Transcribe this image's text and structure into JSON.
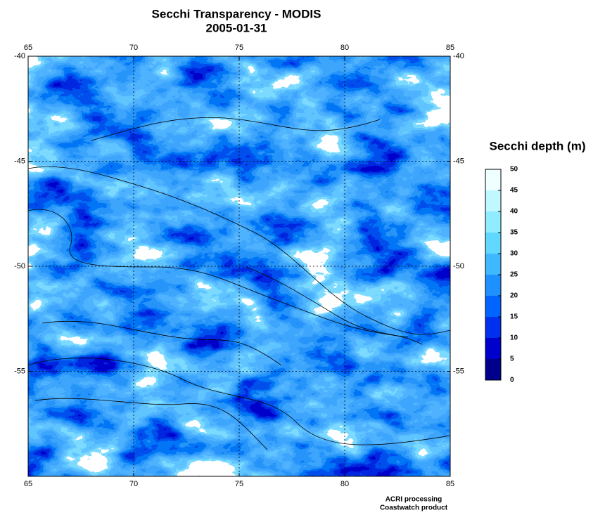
{
  "map": {
    "title": "Secchi Transparency - MODIS",
    "subtitle": "2005-01-31",
    "xlim": [
      65,
      85
    ],
    "ylim": [
      -40,
      -60
    ],
    "xticks": [
      65,
      70,
      75,
      80,
      85
    ],
    "yticks": [
      -40,
      -45,
      -50,
      -55
    ],
    "grid": true
  },
  "colorbar": {
    "label": "Secchi depth (m)",
    "lim": [
      0,
      50
    ],
    "ticks": [
      0,
      5,
      10,
      15,
      20,
      25,
      30,
      35,
      40,
      45,
      50
    ],
    "colors": [
      "#00008b",
      "#0000cd",
      "#0030ee",
      "#0064ff",
      "#1e90ff",
      "#40b8ff",
      "#60d8ff",
      "#90ecff",
      "#c0f8ff",
      "#effeff"
    ]
  },
  "footer": [
    "ACRI processing",
    "Coastwatch product"
  ]
}
